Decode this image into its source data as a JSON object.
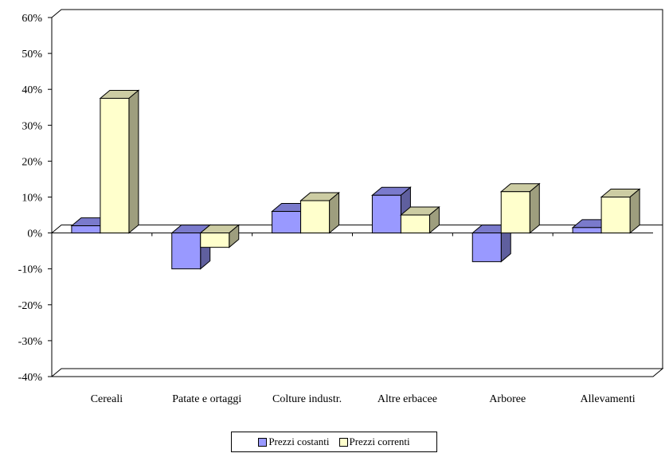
{
  "chart_data": {
    "type": "bar",
    "categories": [
      "Cereali",
      "Patate e ortaggi",
      "Colture industr.",
      "Altre erbacee",
      "Arboree",
      "Allevamenti"
    ],
    "series": [
      {
        "name": "Prezzi costanti",
        "color": "#9999ff",
        "values": [
          2,
          -10,
          6,
          10.5,
          -8,
          1.5
        ]
      },
      {
        "name": "Prezzi correnti",
        "color": "#ffffcc",
        "values": [
          37.5,
          -4,
          9,
          5,
          11.5,
          10
        ]
      }
    ],
    "y_ticks": [
      "-40%",
      "-30%",
      "-20%",
      "-10%",
      "0%",
      "10%",
      "20%",
      "30%",
      "40%",
      "50%",
      "60%"
    ],
    "ylim": [
      -40,
      60
    ],
    "title": "",
    "xlabel": "",
    "ylabel": "",
    "legend_position": "bottom",
    "grid": false
  }
}
